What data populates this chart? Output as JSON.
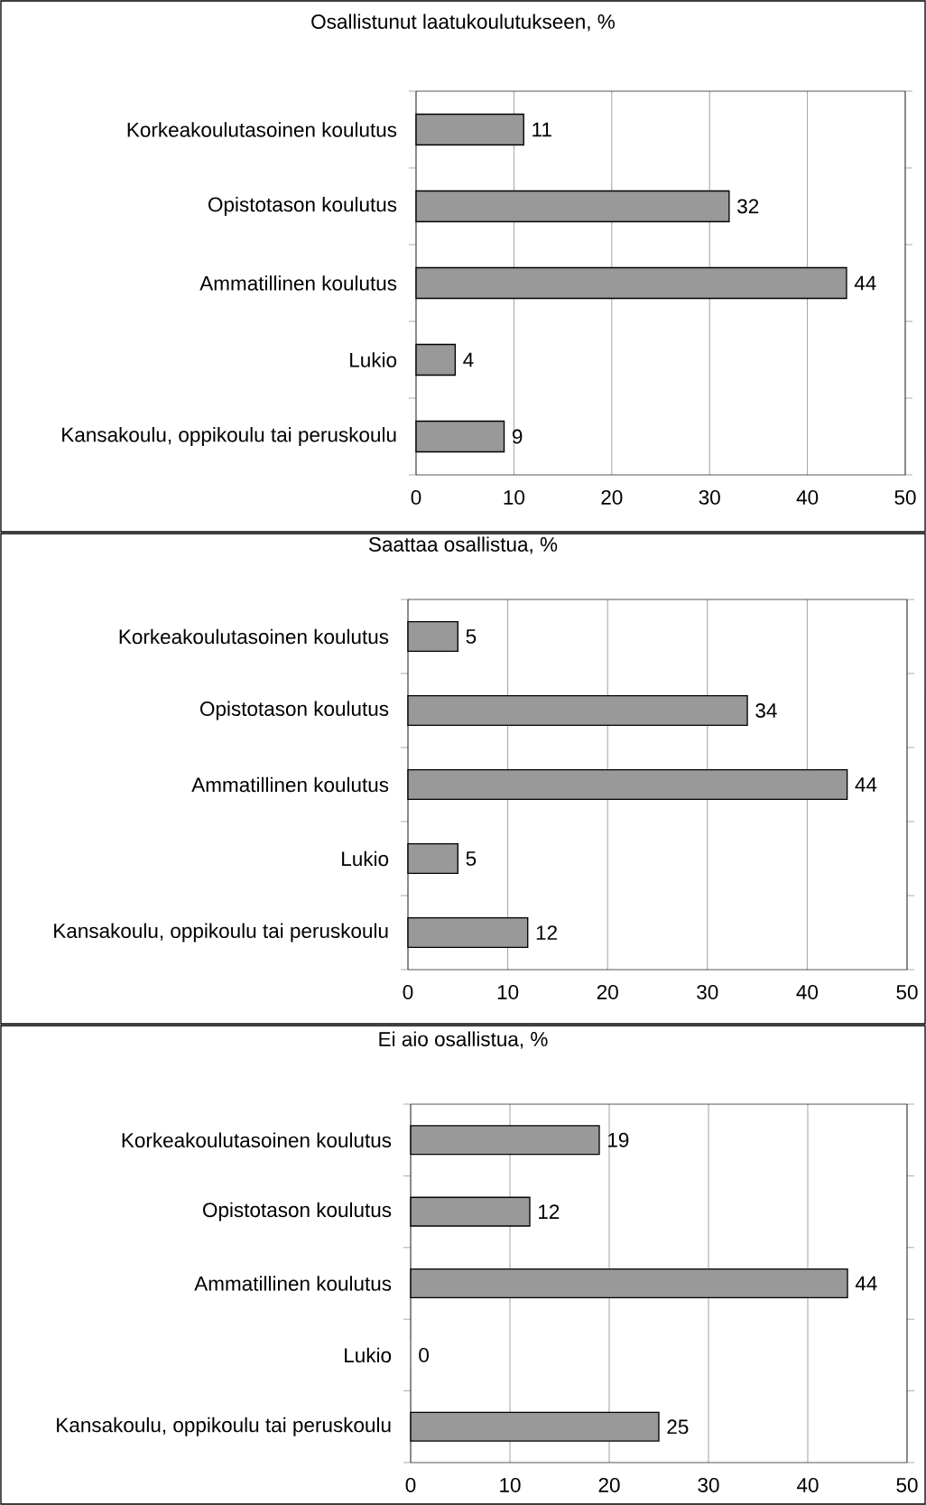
{
  "chart_data": [
    {
      "type": "bar",
      "orientation": "horizontal",
      "title": "Osallistunut laatukoulutukseen, %",
      "categories": [
        "Korkeakoulutasoinen koulutus",
        "Opistotason koulutus",
        "Ammatillinen koulutus",
        "Lukio",
        "Kansakoulu, oppikoulu tai peruskoulu"
      ],
      "values": [
        11,
        32,
        44,
        4,
        9
      ],
      "color": "#999999",
      "xlim": [
        0,
        50
      ],
      "xticks": [
        0,
        10,
        20,
        30,
        40,
        50
      ],
      "grid": "x",
      "data_labels": true
    },
    {
      "type": "bar",
      "orientation": "horizontal",
      "title": "Saattaa osallistua, %",
      "categories": [
        "Korkeakoulutasoinen koulutus",
        "Opistotason koulutus",
        "Ammatillinen koulutus",
        "Lukio",
        "Kansakoulu, oppikoulu tai peruskoulu"
      ],
      "values": [
        5,
        34,
        44,
        5,
        12
      ],
      "color": "#999999",
      "xlim": [
        0,
        50
      ],
      "xticks": [
        0,
        10,
        20,
        30,
        40,
        50
      ],
      "grid": "x",
      "data_labels": true
    },
    {
      "type": "bar",
      "orientation": "horizontal",
      "title": "Ei aio osallistua, %",
      "categories": [
        "Korkeakoulutasoinen koulutus",
        "Opistotason koulutus",
        "Ammatillinen koulutus",
        "Lukio",
        "Kansakoulu, oppikoulu tai peruskoulu"
      ],
      "values": [
        19,
        12,
        44,
        0,
        25
      ],
      "color": "#999999",
      "xlim": [
        0,
        50
      ],
      "xticks": [
        0,
        10,
        20,
        30,
        40,
        50
      ],
      "grid": "x",
      "data_labels": true
    }
  ]
}
